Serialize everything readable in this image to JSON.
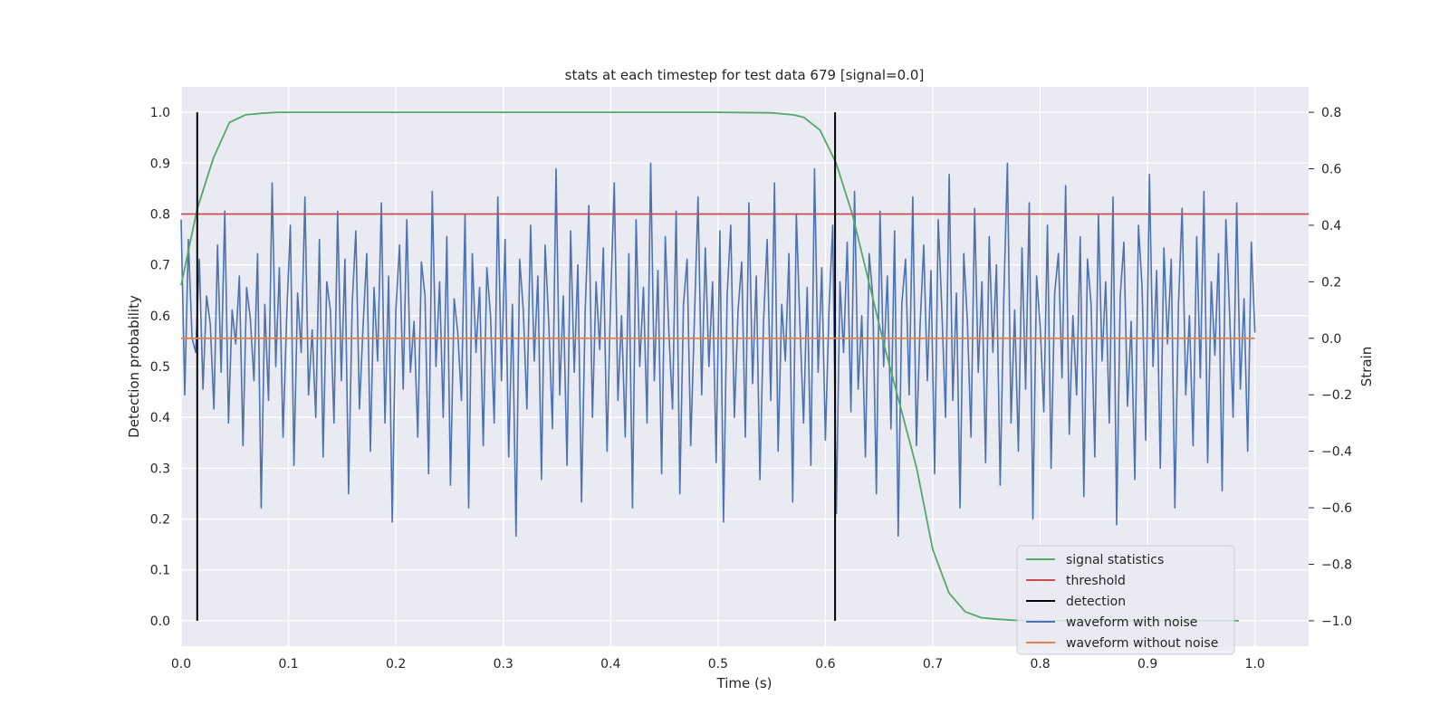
{
  "chart_data": {
    "type": "line",
    "title": "stats at each timestep for test data 679 [signal=0.0]",
    "xlabel": "Time (s)",
    "ylabel_left": "Detection probability",
    "ylabel_right": "Strain",
    "xlim": [
      0.0,
      1.05
    ],
    "ylim_left": [
      -0.05,
      1.05
    ],
    "ylim_right": [
      -1.09,
      0.89
    ],
    "x_ticks": [
      "0.0",
      "0.1",
      "0.2",
      "0.3",
      "0.4",
      "0.5",
      "0.6",
      "0.7",
      "0.8",
      "0.9",
      "1.0"
    ],
    "y_left_ticks": [
      "0.0",
      "0.1",
      "0.2",
      "0.3",
      "0.4",
      "0.5",
      "0.6",
      "0.7",
      "0.8",
      "0.9",
      "1.0"
    ],
    "y_right_ticks": [
      "−1.0",
      "−0.8",
      "−0.6",
      "−0.4",
      "−0.2",
      "0.0",
      "0.2",
      "0.4",
      "0.6",
      "0.8"
    ],
    "grid": true,
    "legend_position": "lower-right",
    "legend": [
      {
        "label": "signal statistics",
        "color": "#55a868"
      },
      {
        "label": "threshold",
        "color": "#c44e52"
      },
      {
        "label": "detection",
        "color": "#000000"
      },
      {
        "label": "waveform with noise",
        "color": "#4c72b0"
      },
      {
        "label": "waveform without noise",
        "color": "#dd8452"
      }
    ],
    "series": [
      {
        "name": "signal statistics",
        "axis": "left",
        "color": "#55a868",
        "x": [
          0.0,
          0.015,
          0.03,
          0.045,
          0.06,
          0.075,
          0.09,
          0.2,
          0.3,
          0.4,
          0.5,
          0.55,
          0.57,
          0.58,
          0.595,
          0.61,
          0.625,
          0.64,
          0.655,
          0.67,
          0.685,
          0.7,
          0.715,
          0.73,
          0.745,
          0.76,
          0.775,
          0.8,
          0.85,
          0.9,
          0.95,
          0.985
        ],
        "y": [
          0.66,
          0.81,
          0.91,
          0.98,
          0.995,
          0.998,
          1.0,
          1.0,
          1.0,
          1.0,
          1.0,
          0.999,
          0.995,
          0.99,
          0.965,
          0.9,
          0.8,
          0.67,
          0.54,
          0.42,
          0.3,
          0.14,
          0.055,
          0.018,
          0.006,
          0.003,
          0.001,
          0.0,
          0.0,
          0.0,
          0.0,
          0.0
        ]
      },
      {
        "name": "threshold",
        "axis": "left",
        "color": "#c44e52",
        "x": [
          0.0,
          1.05
        ],
        "y": [
          0.8,
          0.8
        ]
      },
      {
        "name": "detection",
        "axis": "left",
        "color": "#000000",
        "type": "vlines",
        "x": [
          0.015,
          0.609
        ],
        "ymin": 0.0,
        "ymax": 1.0
      },
      {
        "name": "waveform with noise",
        "axis": "right",
        "color": "#4c72b0",
        "x_start": 0.0,
        "x_end": 1.0,
        "y": [
          0.42,
          -0.2,
          0.35,
          0.0,
          -0.05,
          0.28,
          -0.18,
          0.15,
          0.05,
          -0.25,
          0.33,
          -0.12,
          0.45,
          -0.3,
          0.1,
          -0.02,
          0.22,
          -0.38,
          0.18,
          0.07,
          -0.15,
          0.3,
          -0.6,
          0.12,
          -0.22,
          0.55,
          -0.1,
          0.25,
          -0.35,
          0.08,
          0.4,
          -0.45,
          0.16,
          -0.05,
          0.5,
          -0.2,
          0.03,
          -0.28,
          0.35,
          -0.42,
          0.2,
          0.1,
          -0.3,
          0.45,
          -0.15,
          0.28,
          -0.55,
          0.12,
          0.38,
          -0.25,
          0.05,
          0.3,
          -0.4,
          0.18,
          -0.08,
          0.48,
          -0.3,
          0.22,
          -0.65,
          0.1,
          0.33,
          -0.18,
          0.42,
          -0.12,
          0.06,
          -0.35,
          0.27,
          0.15,
          -0.48,
          0.52,
          -0.1,
          0.2,
          -0.28,
          0.36,
          -0.52,
          0.14,
          0.02,
          -0.22,
          0.44,
          -0.6,
          0.3,
          -0.05,
          0.18,
          -0.38,
          0.25,
          0.08,
          -0.3,
          0.5,
          -0.15,
          0.35,
          -0.42,
          0.12,
          -0.7,
          0.28,
          0.1,
          -0.25,
          0.4,
          -0.08,
          0.22,
          -0.5,
          0.33,
          0.05,
          -0.32,
          0.6,
          -0.2,
          0.15,
          -0.45,
          0.38,
          -0.12,
          0.26,
          -0.58,
          0.1,
          0.47,
          -0.28,
          0.2,
          -0.04,
          0.32,
          -0.4,
          0.14,
          0.55,
          -0.22,
          0.08,
          -0.35,
          0.3,
          -0.6,
          0.42,
          -0.1,
          0.18,
          -0.3,
          0.62,
          -0.15,
          0.24,
          -0.48,
          0.36,
          0.02,
          -0.25,
          0.45,
          -0.55,
          0.12,
          0.28,
          -0.38,
          0.06,
          0.5,
          -0.2,
          0.32,
          -0.1,
          0.2,
          -0.44,
          0.38,
          -0.65,
          0.15,
          0.4,
          -0.28,
          0.1,
          0.27,
          -0.35,
          0.48,
          -0.16,
          0.22,
          -0.5,
          0.06,
          0.35,
          -0.22,
          0.55,
          -0.4,
          0.12,
          -0.08,
          0.3,
          -0.58,
          0.44,
          0.05,
          -0.3,
          0.18,
          -0.45,
          0.6,
          -0.12,
          0.25,
          -0.36,
          0.1,
          0.4,
          -0.62,
          0.2,
          -0.05,
          0.34,
          -0.26,
          0.52,
          -0.18,
          0.08,
          -0.42,
          0.3,
          0.15,
          -0.55,
          0.45,
          -0.1,
          0.22,
          -0.32,
          0.38,
          -0.7,
          0.12,
          0.28,
          -0.2,
          0.5,
          -0.38,
          0.04,
          0.33,
          -0.15,
          0.24,
          -0.48,
          0.42,
          0.1,
          -0.28,
          0.58,
          -0.22,
          0.16,
          -0.6,
          0.3,
          0.06,
          -0.35,
          0.46,
          -0.12,
          0.2,
          -0.44,
          0.36,
          -0.05,
          0.26,
          -0.52,
          0.14,
          0.62,
          -0.3,
          0.1,
          -0.4,
          0.32,
          -0.18,
          0.48,
          -0.64,
          0.22,
          0.04,
          -0.26,
          0.4,
          -0.46,
          0.16,
          0.3,
          -0.14,
          0.54,
          -0.34,
          0.08,
          -0.2,
          0.36,
          -0.56,
          0.28,
          0.12,
          -0.42,
          0.44,
          -0.08,
          0.2,
          -0.3,
          0.5,
          -0.66,
          0.15,
          0.34,
          -0.24,
          0.06,
          -0.5,
          0.4,
          0.18,
          -0.36,
          0.58,
          -0.1,
          0.24,
          -0.46,
          0.32,
          -0.02,
          0.28,
          -0.6,
          0.12,
          0.46,
          -0.2,
          0.08,
          -0.38,
          0.36,
          -0.14,
          0.52,
          -0.44,
          0.2,
          -0.06,
          0.3,
          -0.54,
          0.42,
          0.1,
          -0.28,
          0.48,
          -0.18,
          0.14,
          -0.4,
          0.34,
          0.02
        ]
      },
      {
        "name": "waveform without noise",
        "axis": "right",
        "color": "#dd8452",
        "x": [
          0.0,
          1.0
        ],
        "y": [
          0.0,
          0.0
        ]
      }
    ]
  }
}
